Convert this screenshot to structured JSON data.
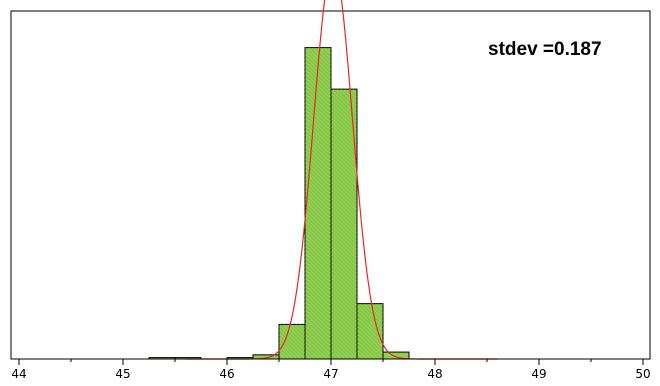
{
  "chart_data": {
    "type": "bar",
    "title": "",
    "xlabel": "",
    "ylabel": "",
    "xlim": [
      44,
      50
    ],
    "ylim": [
      0,
      1
    ],
    "x_ticks": [
      44,
      45,
      46,
      47,
      48,
      49,
      50
    ],
    "x_tick_labels": [
      "44",
      "45",
      "46",
      "47",
      "48",
      "49",
      "50"
    ],
    "bin_width": 0.25,
    "bins": [
      {
        "start": 45.25,
        "end": 45.5,
        "value": 0.004
      },
      {
        "start": 45.5,
        "end": 45.75,
        "value": 0.004
      },
      {
        "start": 45.75,
        "end": 46.0,
        "value": 0.0
      },
      {
        "start": 46.0,
        "end": 46.25,
        "value": 0.004
      },
      {
        "start": 46.25,
        "end": 46.5,
        "value": 0.012
      },
      {
        "start": 46.5,
        "end": 46.75,
        "value": 0.1
      },
      {
        "start": 46.75,
        "end": 47.0,
        "value": 0.9
      },
      {
        "start": 47.0,
        "end": 47.25,
        "value": 0.78
      },
      {
        "start": 47.25,
        "end": 47.5,
        "value": 0.16
      },
      {
        "start": 47.5,
        "end": 47.75,
        "value": 0.02
      }
    ],
    "curve": {
      "type": "normal",
      "mean": 47.02,
      "stdev": 0.187,
      "peak": 1.14
    },
    "annotation": "stdev =0.187",
    "grid": false,
    "legend": "none",
    "colors": {
      "bar_fill": "#8fce4f",
      "bar_edge": "#000000",
      "curve": "#e8262b",
      "frame": "#000000"
    }
  }
}
